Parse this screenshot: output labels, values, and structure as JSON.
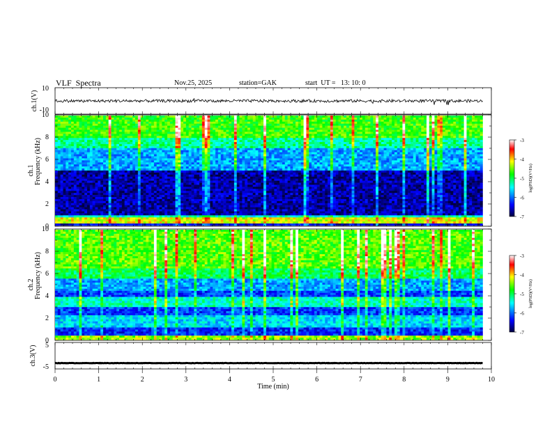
{
  "header": {
    "title": "VLF  Spectra",
    "date": "Nov.25, 2025",
    "station": "station=GAK",
    "start": "start  UT =   13: 10: 0"
  },
  "chart_data": [
    {
      "type": "line",
      "panel": "ch1-waveform",
      "ylabel": "ch.1(V)",
      "ylim": [
        -10,
        10
      ],
      "yticks": [
        "10",
        "-10"
      ],
      "xlim": [
        0,
        9.8
      ],
      "y_nominal": 0
    },
    {
      "type": "heatmap",
      "panel": "ch1-spectrogram",
      "ylabel_line1": "ch.1",
      "ylabel_line2": "Frequency  (kHz)",
      "ylim": [
        0,
        10
      ],
      "yticks": [
        "0",
        "2",
        "4",
        "6",
        "8",
        "10"
      ],
      "xlim": [
        0,
        9.8
      ],
      "colorbar": {
        "label": "log(PSD)(V²/Hz)",
        "range": [
          -7,
          -3
        ],
        "ticks": [
          "-3",
          "-4",
          "-5",
          "-6",
          "-7"
        ]
      }
    },
    {
      "type": "heatmap",
      "panel": "ch2-spectrogram",
      "ylabel_line1": "ch.2",
      "ylabel_line2": "Frequency  (kHz)",
      "ylim": [
        0,
        10
      ],
      "yticks": [
        "0",
        "2",
        "4",
        "6",
        "8",
        "10"
      ],
      "xlim": [
        0,
        9.8
      ],
      "colorbar": {
        "label": "log(PSD)(V²/Hz)",
        "range": [
          -7,
          -3
        ],
        "ticks": [
          "-3",
          "-4",
          "-5",
          "-6",
          "-7"
        ]
      }
    },
    {
      "type": "line",
      "panel": "ch3-waveform",
      "ylabel": "ch.3(V)",
      "ylim": [
        -5,
        5
      ],
      "yticks": [
        "5",
        "-5"
      ],
      "xlim": [
        0,
        9.8
      ],
      "y_nominal": -2.8
    }
  ],
  "xaxis": {
    "label": "Time  (min)",
    "range": [
      0,
      10
    ],
    "ticks": [
      "0",
      "1",
      "2",
      "3",
      "4",
      "5",
      "6",
      "7",
      "8",
      "9",
      "10"
    ]
  },
  "colors": {
    "background": "#ffffff",
    "trace": "#000000",
    "colormap": [
      "#000040",
      "#0000ff",
      "#00ffff",
      "#00ff00",
      "#ffff00",
      "#ff0000",
      "#ffffff"
    ]
  }
}
